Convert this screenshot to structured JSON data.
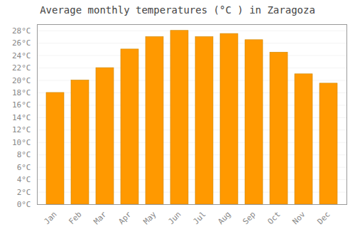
{
  "chart_data": {
    "type": "bar",
    "title": "Average monthly temperatures (°C ) in Zaragoza",
    "categories": [
      "Jan",
      "Feb",
      "Mar",
      "Apr",
      "May",
      "Jun",
      "Jul",
      "Aug",
      "Sep",
      "Oct",
      "Nov",
      "Dec"
    ],
    "values": [
      18.0,
      20.0,
      22.0,
      25.0,
      27.0,
      28.0,
      27.0,
      27.5,
      26.5,
      24.5,
      21.0,
      19.5
    ],
    "color": "#FF9900",
    "ylim": [
      0,
      29
    ],
    "yticks": [
      {
        "value": 0,
        "label": "0°C"
      },
      {
        "value": 2,
        "label": "2°C"
      },
      {
        "value": 4,
        "label": "4°C"
      },
      {
        "value": 6,
        "label": "6°C"
      },
      {
        "value": 8,
        "label": "8°C"
      },
      {
        "value": 10,
        "label": "10°C"
      },
      {
        "value": 12,
        "label": "12°C"
      },
      {
        "value": 14,
        "label": "14°C"
      },
      {
        "value": 16,
        "label": "16°C"
      },
      {
        "value": 18,
        "label": "18°C"
      },
      {
        "value": 20,
        "label": "20°C"
      },
      {
        "value": 22,
        "label": "22°C"
      },
      {
        "value": 24,
        "label": "24°C"
      },
      {
        "value": 26,
        "label": "26°C"
      },
      {
        "value": 28,
        "label": "28°C"
      }
    ],
    "grid": true
  }
}
